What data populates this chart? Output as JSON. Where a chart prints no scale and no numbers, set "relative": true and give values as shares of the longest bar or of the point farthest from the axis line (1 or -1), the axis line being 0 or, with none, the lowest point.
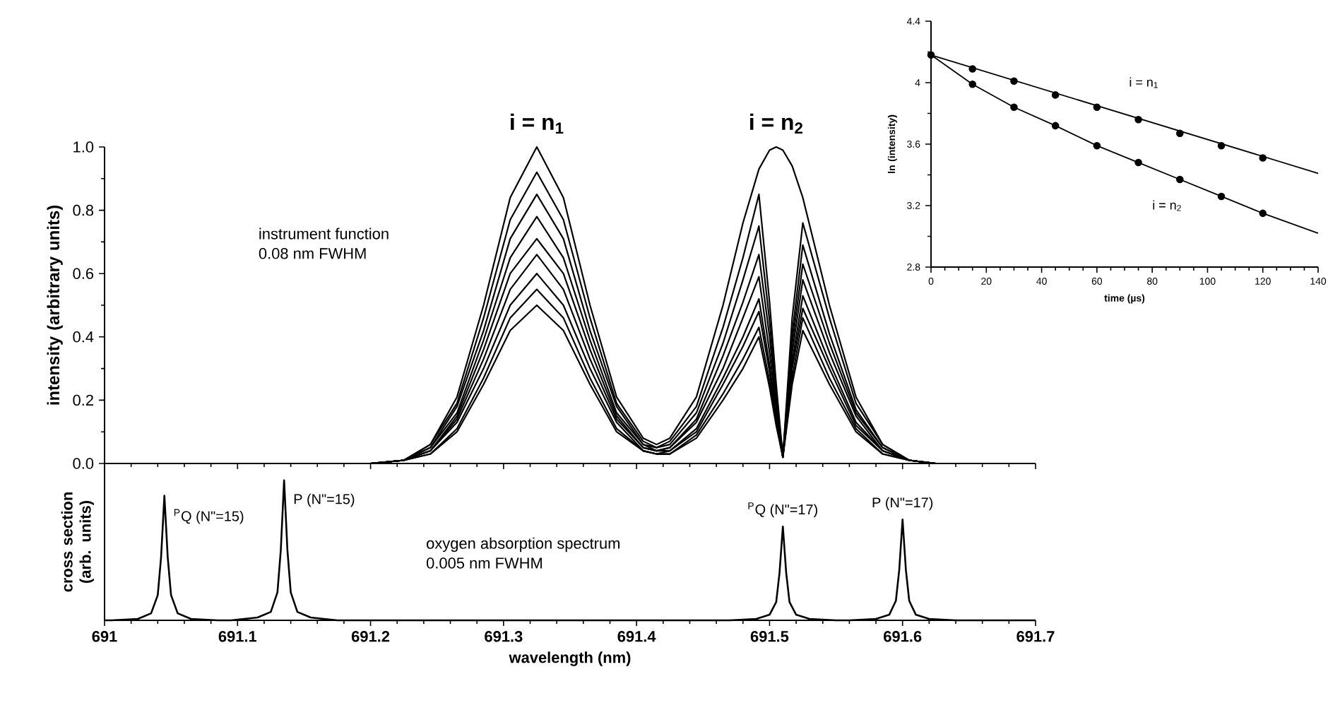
{
  "chart_data": [
    {
      "type": "line",
      "ylabel": "intensity (arbitrary units)",
      "xlim": [
        691,
        691.7
      ],
      "xticks": [
        691,
        691.1,
        691.2,
        691.3,
        691.4,
        691.5,
        691.6,
        691.7
      ],
      "ylim": [
        0,
        1.0
      ],
      "yticks": [
        {
          "value": 0,
          "label": "0.0"
        },
        0.2,
        0.4,
        0.6,
        0.8,
        {
          "value": 1.0,
          "label": "1.0"
        }
      ],
      "tick_labels": "y",
      "annotations": [
        "instrument function",
        "0.08 nm FWHM",
        {
          "text": "i = n$_{1}$",
          "x": 691.325,
          "y": 1.0
        },
        {
          "text": "i = n$_{2}$",
          "x": 691.505,
          "y": 1.0
        }
      ],
      "x": [
        691,
        691.2,
        691.225,
        691.245,
        691.265,
        691.285,
        691.305,
        691.325,
        691.345,
        691.365,
        691.385,
        691.405,
        691.415,
        691.425,
        691.445,
        691.465,
        691.48,
        691.492,
        691.5,
        691.505,
        691.51,
        691.517,
        691.525,
        691.545,
        691.565,
        691.585,
        691.605,
        691.625,
        691.7
      ],
      "series": [
        {
          "color": "#000000",
          "values": [
            0,
            0,
            0.01,
            0.06,
            0.21,
            0.5,
            0.84,
            1,
            0.84,
            0.5,
            0.21,
            0.08,
            0.06,
            0.08,
            0.21,
            0.5,
            0.76,
            0.93,
            0.99,
            1,
            0.99,
            0.94,
            0.84,
            0.5,
            0.21,
            0.06,
            0.01,
            0,
            0
          ]
        },
        {
          "color": "#000000",
          "values": [
            0,
            0,
            0.01,
            0.06,
            0.19,
            0.46,
            0.77,
            0.92,
            0.77,
            0.46,
            0.19,
            0.07,
            0.05,
            0.07,
            0.18,
            0.43,
            0.65,
            0.85,
            0.51,
            0.25,
            0.02,
            0.46,
            0.76,
            0.46,
            0.19,
            0.06,
            0.01,
            0,
            0
          ]
        },
        {
          "color": "#000000",
          "values": [
            0,
            0,
            0.01,
            0.05,
            0.18,
            0.42,
            0.71,
            0.85,
            0.71,
            0.42,
            0.18,
            0.06,
            0.05,
            0.06,
            0.16,
            0.38,
            0.58,
            0.75,
            0.45,
            0.22,
            0.02,
            0.41,
            0.69,
            0.41,
            0.17,
            0.05,
            0.01,
            0,
            0
          ]
        },
        {
          "color": "#000000",
          "values": [
            0,
            0,
            0.01,
            0.05,
            0.16,
            0.39,
            0.65,
            0.78,
            0.65,
            0.39,
            0.16,
            0.06,
            0.04,
            0.05,
            0.14,
            0.34,
            0.51,
            0.66,
            0.4,
            0.2,
            0.02,
            0.38,
            0.63,
            0.38,
            0.16,
            0.05,
            0.01,
            0,
            0
          ]
        },
        {
          "color": "#000000",
          "values": [
            0,
            0,
            0.01,
            0.04,
            0.15,
            0.36,
            0.6,
            0.71,
            0.6,
            0.36,
            0.15,
            0.05,
            0.04,
            0.05,
            0.13,
            0.3,
            0.46,
            0.59,
            0.35,
            0.18,
            0.02,
            0.35,
            0.58,
            0.35,
            0.15,
            0.04,
            0.01,
            0,
            0
          ]
        },
        {
          "color": "#000000",
          "values": [
            0,
            0,
            0.01,
            0.04,
            0.14,
            0.33,
            0.55,
            0.66,
            0.55,
            0.33,
            0.14,
            0.05,
            0.04,
            0.04,
            0.11,
            0.27,
            0.4,
            0.52,
            0.31,
            0.16,
            0.02,
            0.32,
            0.53,
            0.32,
            0.13,
            0.04,
            0.01,
            0,
            0
          ]
        },
        {
          "color": "#000000",
          "values": [
            0,
            0,
            0.01,
            0.04,
            0.13,
            0.3,
            0.5,
            0.6,
            0.5,
            0.3,
            0.13,
            0.04,
            0.03,
            0.04,
            0.1,
            0.25,
            0.37,
            0.48,
            0.29,
            0.14,
            0.02,
            0.3,
            0.49,
            0.3,
            0.12,
            0.04,
            0.01,
            0,
            0
          ]
        },
        {
          "color": "#000000",
          "values": [
            0,
            0,
            0.01,
            0.03,
            0.11,
            0.27,
            0.46,
            0.55,
            0.46,
            0.27,
            0.11,
            0.04,
            0.03,
            0.03,
            0.09,
            0.22,
            0.33,
            0.43,
            0.26,
            0.13,
            0.02,
            0.27,
            0.46,
            0.27,
            0.11,
            0.03,
            0.01,
            0,
            0
          ]
        },
        {
          "color": "#000000",
          "values": [
            0,
            0,
            0.01,
            0.03,
            0.1,
            0.25,
            0.42,
            0.5,
            0.42,
            0.25,
            0.1,
            0.04,
            0.03,
            0.03,
            0.08,
            0.2,
            0.3,
            0.4,
            0.24,
            0.12,
            0.02,
            0.25,
            0.42,
            0.25,
            0.1,
            0.03,
            0.01,
            0,
            0
          ]
        }
      ]
    },
    {
      "type": "line",
      "relative": true,
      "xlabel": "wavelength (nm)",
      "ylabel": "cross section (arb. units)",
      "xlim": [
        691,
        691.7
      ],
      "xticks": [
        691,
        691.1,
        691.2,
        691.3,
        691.4,
        691.5,
        691.6,
        691.7
      ],
      "tick_labels": "x",
      "annotations": [
        "oxygen absorption spectrum",
        "0.005 nm FWHM",
        {
          "text": "$^{P}$Q (N\"=15)",
          "x": 691.045,
          "y": 0.89
        },
        {
          "text": "P (N\"=15)",
          "x": 691.135,
          "y": 1
        },
        {
          "text": "$^{P}$Q (N\"=17)",
          "x": 691.51,
          "y": 0.67
        },
        {
          "text": "P (N\"=17)",
          "x": 691.6,
          "y": 0.72
        }
      ],
      "x": [
        691,
        691.005,
        691.025,
        691.035,
        691.04,
        691.0425,
        691.045,
        691.0475,
        691.05,
        691.055,
        691.065,
        691.085,
        691.095,
        691.115,
        691.125,
        691.13,
        691.1325,
        691.135,
        691.1375,
        691.14,
        691.145,
        691.155,
        691.175,
        691.47,
        691.49,
        691.5,
        691.505,
        691.5075,
        691.51,
        691.5125,
        691.515,
        691.52,
        691.53,
        691.55,
        691.56,
        691.58,
        691.59,
        691.595,
        691.5975,
        691.6,
        691.6025,
        691.605,
        691.61,
        691.62,
        691.64,
        691.7
      ],
      "series": [
        {
          "color": "#000000",
          "values": [
            0,
            0,
            0.01,
            0.05,
            0.18,
            0.45,
            0.89,
            0.45,
            0.18,
            0.05,
            0.01,
            0,
            0,
            0.02,
            0.06,
            0.2,
            0.5,
            1,
            0.5,
            0.2,
            0.06,
            0.02,
            0,
            0,
            0.01,
            0.04,
            0.13,
            0.34,
            0.67,
            0.34,
            0.13,
            0.04,
            0.01,
            0,
            0,
            0.01,
            0.04,
            0.14,
            0.36,
            0.72,
            0.36,
            0.14,
            0.04,
            0.01,
            0,
            0
          ]
        }
      ]
    },
    {
      "type": "line",
      "xlabel": "time (µs)",
      "ylabel": "ln (intensity)",
      "xlim": [
        0,
        140
      ],
      "xticks": [
        0,
        20,
        40,
        60,
        80,
        100,
        120,
        140
      ],
      "ylim": [
        2.8,
        4.4
      ],
      "yticks": [
        2.8,
        3.2,
        3.6,
        4,
        4.4
      ],
      "annotations": [
        "i = n$_{1}$",
        "i = n$_{2}$"
      ],
      "series": [
        {
          "type": "scatter",
          "color": "#000000",
          "x": [
            0,
            15,
            30,
            45,
            60,
            75,
            90,
            105,
            120
          ],
          "values": [
            4.18,
            4.09,
            4.01,
            3.92,
            3.84,
            3.76,
            3.67,
            3.59,
            3.51
          ]
        },
        {
          "type": "line",
          "color": "#000000",
          "x": [
            0,
            140
          ],
          "values": [
            4.18,
            3.41
          ]
        },
        {
          "type": "scatter",
          "color": "#000000",
          "x": [
            15,
            30,
            45,
            60,
            75,
            90,
            105,
            120
          ],
          "values": [
            3.99,
            3.84,
            3.72,
            3.59,
            3.48,
            3.37,
            3.26,
            3.15
          ]
        },
        {
          "type": "line",
          "color": "#000000",
          "x": [
            0,
            15,
            30,
            45,
            60,
            75,
            90,
            105,
            120,
            140
          ],
          "values": [
            4.18,
            3.99,
            3.84,
            3.72,
            3.59,
            3.48,
            3.37,
            3.26,
            3.15,
            3.02
          ]
        }
      ]
    }
  ]
}
